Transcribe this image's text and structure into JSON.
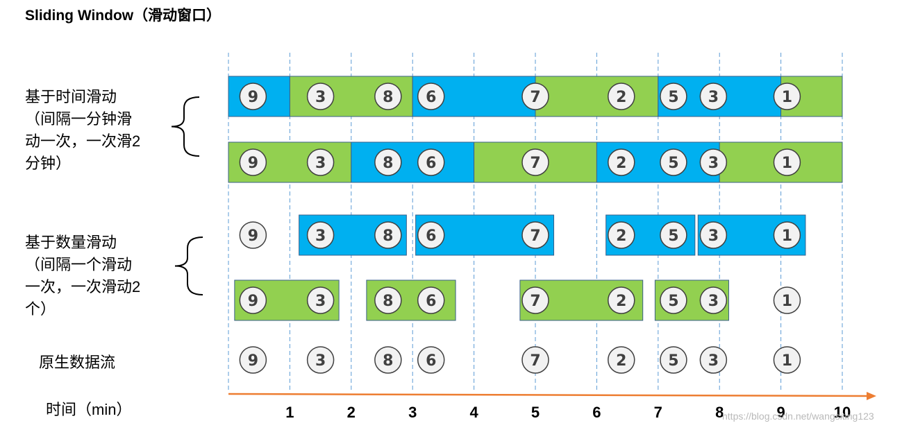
{
  "title": "Sliding Window（滑动窗口）",
  "labels": {
    "time_group": "基于时间滑动\n（间隔一分钟滑\n动一次，一次滑2\n分钟）",
    "count_group": "基于数量滑动\n（间隔一个滑动\n一次，一次滑动2\n个）",
    "raw_stream": "原生数据流",
    "time_axis": "时间（min）"
  },
  "colors": {
    "blue": "#00b0f0",
    "green": "#92d050",
    "axis": "#ed7d31",
    "guide": "#5b9bd5"
  },
  "axis": {
    "ticks": [
      "1",
      "2",
      "3",
      "4",
      "5",
      "6",
      "7",
      "8",
      "9",
      "10"
    ],
    "range": [
      0,
      10
    ]
  },
  "events": [
    {
      "value": "9",
      "t": 0.4
    },
    {
      "value": "3",
      "t": 1.5
    },
    {
      "value": "8",
      "t": 2.6
    },
    {
      "value": "6",
      "t": 3.3
    },
    {
      "value": "7",
      "t": 5.0
    },
    {
      "value": "2",
      "t": 6.4
    },
    {
      "value": "5",
      "t": 7.25
    },
    {
      "value": "3",
      "t": 7.9
    },
    {
      "value": "1",
      "t": 9.1
    }
  ],
  "rows": [
    {
      "id": "time-window-row-1",
      "windows": [
        {
          "start": 0,
          "end": 1,
          "color": "blue"
        },
        {
          "start": 1,
          "end": 3,
          "color": "green"
        },
        {
          "start": 3,
          "end": 5,
          "color": "blue"
        },
        {
          "start": 5,
          "end": 7,
          "color": "green"
        },
        {
          "start": 7,
          "end": 9,
          "color": "blue"
        },
        {
          "start": 9,
          "end": 10,
          "color": "green"
        }
      ]
    },
    {
      "id": "time-window-row-2",
      "windows": [
        {
          "start": 0,
          "end": 2,
          "color": "green"
        },
        {
          "start": 2,
          "end": 4,
          "color": "blue"
        },
        {
          "start": 4,
          "end": 6,
          "color": "green"
        },
        {
          "start": 6,
          "end": 8,
          "color": "blue"
        },
        {
          "start": 8,
          "end": 10,
          "color": "green"
        }
      ]
    },
    {
      "id": "count-window-row-1",
      "windows": [
        {
          "start": 1.15,
          "end": 2.9,
          "color": "blue"
        },
        {
          "start": 3.05,
          "end": 5.3,
          "color": "blue"
        },
        {
          "start": 6.15,
          "end": 7.6,
          "color": "blue"
        },
        {
          "start": 7.65,
          "end": 9.4,
          "color": "blue"
        }
      ]
    },
    {
      "id": "count-window-row-2",
      "windows": [
        {
          "start": 0.1,
          "end": 1.8,
          "color": "green"
        },
        {
          "start": 2.25,
          "end": 3.7,
          "color": "green"
        },
        {
          "start": 4.75,
          "end": 6.75,
          "color": "green"
        },
        {
          "start": 6.95,
          "end": 8.15,
          "color": "green"
        }
      ]
    },
    {
      "id": "raw-stream-row",
      "windows": []
    }
  ],
  "watermark": "https://blog.csdn.net/wangsiting123"
}
